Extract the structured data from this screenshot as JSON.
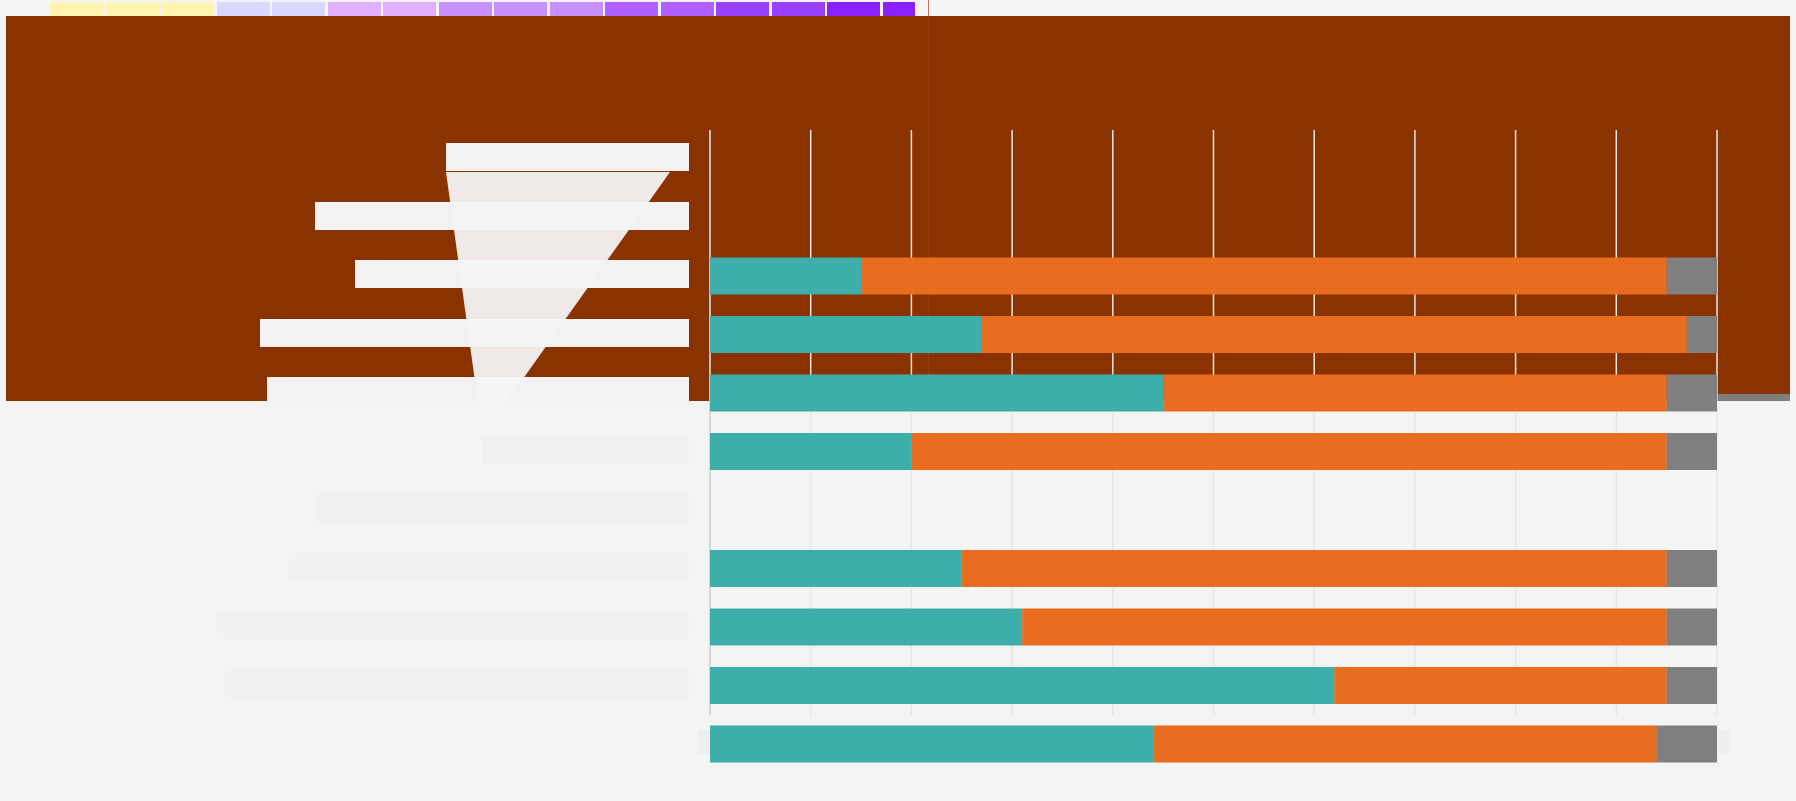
{
  "chart_data": {
    "type": "bar",
    "stacked": true,
    "orientation": "horizontal",
    "title": "",
    "xlabel": "",
    "ylabel": "",
    "xlim": [
      0,
      100
    ],
    "grid": true,
    "categories": [
      "",
      "",
      "",
      "",
      "",
      "",
      "",
      "",
      "",
      ""
    ],
    "series": [
      {
        "color": "#3daea9",
        "values": [
          null,
          15,
          27,
          45,
          20,
          null,
          25,
          31,
          62,
          44
        ]
      },
      {
        "color": "#e86d1e",
        "values": [
          null,
          80,
          70,
          50,
          75,
          null,
          70,
          64,
          33,
          50
        ]
      },
      {
        "color": "#7f7f7f",
        "values": [
          null,
          5,
          3,
          5,
          5,
          null,
          5,
          5,
          5,
          6
        ]
      }
    ]
  },
  "colors": {
    "band": "#8a3300",
    "background": "#f4f4f4"
  }
}
